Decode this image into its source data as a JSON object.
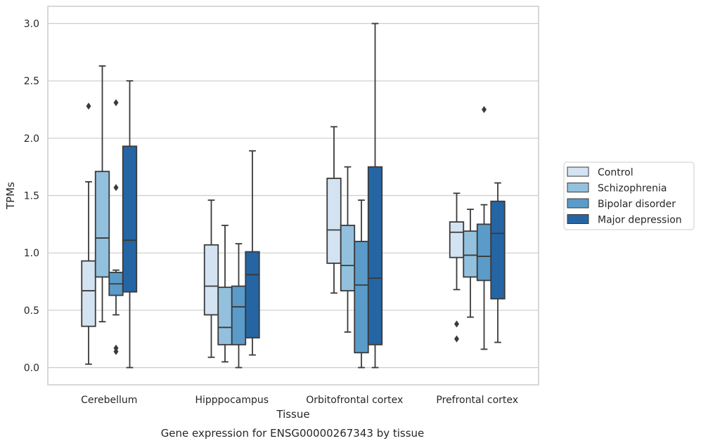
{
  "chart_data": {
    "type": "box",
    "xlabel": "Tissue",
    "ylabel": "TPMs",
    "caption": "Gene expression for ENSG00000267343 by tissue",
    "ylim": [
      -0.15,
      3.15
    ],
    "yticks": [
      {
        "value": 0.0,
        "label": "0.0"
      },
      {
        "value": 0.5,
        "label": "0.5"
      },
      {
        "value": 1.0,
        "label": "1.0"
      },
      {
        "value": 1.5,
        "label": "1.5"
      },
      {
        "value": 2.0,
        "label": "2.0"
      },
      {
        "value": 2.5,
        "label": "2.5"
      },
      {
        "value": 3.0,
        "label": "3.0"
      }
    ],
    "grid": "horizontal",
    "legend_position": "right, outside",
    "categories": [
      "Cerebellum",
      "Hipppocampus",
      "Orbitofrontal cortex",
      "Prefrontal cortex"
    ],
    "series": [
      {
        "name": "Control",
        "color": "#d3e3f2",
        "boxes": [
          {
            "whislo": 0.03,
            "q1": 0.36,
            "med": 0.67,
            "q3": 0.93,
            "whishi": 1.62,
            "fliers": [
              2.28
            ]
          },
          {
            "whislo": 0.09,
            "q1": 0.46,
            "med": 0.71,
            "q3": 1.07,
            "whishi": 1.46,
            "fliers": []
          },
          {
            "whislo": 0.65,
            "q1": 0.91,
            "med": 1.2,
            "q3": 1.65,
            "whishi": 2.1,
            "fliers": []
          },
          {
            "whislo": 0.68,
            "q1": 0.96,
            "med": 1.18,
            "q3": 1.27,
            "whishi": 1.52,
            "fliers": [
              0.38,
              0.25
            ]
          }
        ]
      },
      {
        "name": "Schizophrenia",
        "color": "#93c1dd",
        "boxes": [
          {
            "whislo": 0.4,
            "q1": 0.79,
            "med": 1.13,
            "q3": 1.71,
            "whishi": 2.63,
            "fliers": []
          },
          {
            "whislo": 0.05,
            "q1": 0.2,
            "med": 0.35,
            "q3": 0.7,
            "whishi": 1.24,
            "fliers": []
          },
          {
            "whislo": 0.31,
            "q1": 0.67,
            "med": 0.89,
            "q3": 1.24,
            "whishi": 1.75,
            "fliers": []
          },
          {
            "whislo": 0.44,
            "q1": 0.79,
            "med": 0.98,
            "q3": 1.19,
            "whishi": 1.38,
            "fliers": []
          }
        ]
      },
      {
        "name": "Bipolar disorder",
        "color": "#5a9bc9",
        "boxes": [
          {
            "whislo": 0.46,
            "q1": 0.63,
            "med": 0.73,
            "q3": 0.83,
            "whishi": 0.85,
            "fliers": [
              2.31,
              1.57,
              0.17,
              0.14
            ]
          },
          {
            "whislo": 0.0,
            "q1": 0.2,
            "med": 0.53,
            "q3": 0.71,
            "whishi": 1.08,
            "fliers": []
          },
          {
            "whislo": 0.0,
            "q1": 0.13,
            "med": 0.72,
            "q3": 1.1,
            "whishi": 1.46,
            "fliers": []
          },
          {
            "whislo": 0.16,
            "q1": 0.76,
            "med": 0.97,
            "q3": 1.25,
            "whishi": 1.42,
            "fliers": [
              2.25
            ]
          }
        ]
      },
      {
        "name": "Major depression",
        "color": "#2565a4",
        "boxes": [
          {
            "whislo": 0.0,
            "q1": 0.66,
            "med": 1.11,
            "q3": 1.93,
            "whishi": 2.5,
            "fliers": []
          },
          {
            "whislo": 0.11,
            "q1": 0.26,
            "med": 0.81,
            "q3": 1.01,
            "whishi": 1.89,
            "fliers": []
          },
          {
            "whislo": 0.0,
            "q1": 0.2,
            "med": 0.78,
            "q3": 1.75,
            "whishi": 3.0,
            "fliers": []
          },
          {
            "whislo": 0.22,
            "q1": 0.6,
            "med": 1.17,
            "q3": 1.45,
            "whishi": 1.61,
            "fliers": []
          }
        ]
      }
    ]
  }
}
